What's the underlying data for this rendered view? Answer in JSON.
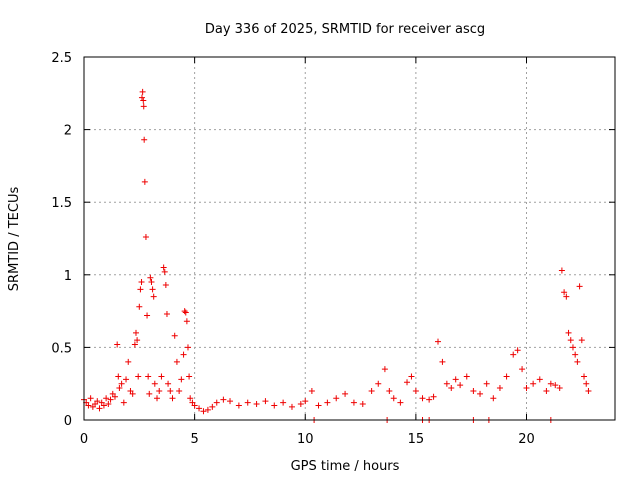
{
  "chart_data": {
    "type": "scatter",
    "title": "Day 336 of 2025, SRMTID for receiver ascg",
    "xlabel": "GPS time / hours",
    "ylabel": "SRMTID / TECUs",
    "xlim": [
      0,
      24
    ],
    "ylim": [
      0,
      2.5
    ],
    "x_ticks": [
      0,
      5,
      10,
      15,
      20
    ],
    "x_tick_labels": [
      "0",
      "5",
      "10",
      "15",
      "20"
    ],
    "y_ticks": [
      0,
      0.5,
      1,
      1.5,
      2,
      2.5
    ],
    "y_tick_labels": [
      "0",
      "0.5",
      "1",
      "1.5",
      "2",
      "2.5"
    ],
    "grid": true,
    "marker": "+",
    "series": [
      {
        "name": "SRMTID",
        "color": "#ee0000",
        "x": [
          0.0,
          0.1,
          0.2,
          0.3,
          0.4,
          0.5,
          0.6,
          0.7,
          0.8,
          0.9,
          1.0,
          1.1,
          1.2,
          1.3,
          1.4,
          1.5,
          1.55,
          1.6,
          1.7,
          1.8,
          1.9,
          2.0,
          2.1,
          2.2,
          2.3,
          2.35,
          2.4,
          2.45,
          2.5,
          2.55,
          2.6,
          2.62,
          2.65,
          2.68,
          2.7,
          2.72,
          2.75,
          2.8,
          2.85,
          2.9,
          2.95,
          3.0,
          3.05,
          3.1,
          3.15,
          3.2,
          3.3,
          3.4,
          3.5,
          3.6,
          3.65,
          3.7,
          3.75,
          3.8,
          3.9,
          4.0,
          4.1,
          4.2,
          4.3,
          4.4,
          4.5,
          4.55,
          4.6,
          4.65,
          4.7,
          4.75,
          4.8,
          4.9,
          5.0,
          5.2,
          5.4,
          5.6,
          5.8,
          6.0,
          6.3,
          6.6,
          7.0,
          7.4,
          7.8,
          8.2,
          8.6,
          9.0,
          9.4,
          9.8,
          10.0,
          10.3,
          10.6,
          11.0,
          11.4,
          11.8,
          12.2,
          12.6,
          13.0,
          13.3,
          13.6,
          13.8,
          14.0,
          14.3,
          14.6,
          14.8,
          15.0,
          15.3,
          15.6,
          15.8,
          16.0,
          16.2,
          16.4,
          16.6,
          16.8,
          17.0,
          17.3,
          17.6,
          17.9,
          18.2,
          18.5,
          18.8,
          19.1,
          19.4,
          19.6,
          19.8,
          20.0,
          20.3,
          20.6,
          20.9,
          21.1,
          21.3,
          21.5,
          21.6,
          21.7,
          21.8,
          21.9,
          22.0,
          22.1,
          22.2,
          22.3,
          22.4,
          22.5,
          22.6,
          22.7,
          22.8,
          13.7,
          15.3,
          15.6,
          17.6,
          18.3,
          21.1,
          10.4
        ],
        "y": [
          0.14,
          0.12,
          0.1,
          0.15,
          0.09,
          0.11,
          0.13,
          0.08,
          0.12,
          0.1,
          0.15,
          0.11,
          0.14,
          0.18,
          0.16,
          0.52,
          0.3,
          0.22,
          0.25,
          0.12,
          0.28,
          0.4,
          0.2,
          0.18,
          0.52,
          0.6,
          0.55,
          0.3,
          0.78,
          0.9,
          0.95,
          2.22,
          2.26,
          2.2,
          2.16,
          1.93,
          1.64,
          1.26,
          0.72,
          0.3,
          0.18,
          0.98,
          0.95,
          0.9,
          0.85,
          0.25,
          0.15,
          0.2,
          0.3,
          1.05,
          1.02,
          0.93,
          0.73,
          0.25,
          0.2,
          0.15,
          0.58,
          0.4,
          0.2,
          0.28,
          0.45,
          0.75,
          0.74,
          0.68,
          0.5,
          0.3,
          0.15,
          0.12,
          0.1,
          0.08,
          0.06,
          0.07,
          0.09,
          0.12,
          0.14,
          0.13,
          0.1,
          0.12,
          0.11,
          0.13,
          0.1,
          0.12,
          0.09,
          0.11,
          0.13,
          0.2,
          0.1,
          0.12,
          0.15,
          0.18,
          0.12,
          0.11,
          0.2,
          0.25,
          0.35,
          0.2,
          0.15,
          0.12,
          0.26,
          0.3,
          0.2,
          0.15,
          0.14,
          0.16,
          0.54,
          0.4,
          0.25,
          0.22,
          0.28,
          0.24,
          0.3,
          0.2,
          0.18,
          0.25,
          0.15,
          0.22,
          0.3,
          0.45,
          0.48,
          0.35,
          0.22,
          0.25,
          0.28,
          0.2,
          0.25,
          0.24,
          0.22,
          1.03,
          0.88,
          0.85,
          0.6,
          0.55,
          0.5,
          0.45,
          0.4,
          0.92,
          0.55,
          0.3,
          0.25,
          0.2,
          0.0,
          0.0,
          0.0,
          0.0,
          0.0,
          0.0,
          0.0
        ]
      }
    ]
  }
}
